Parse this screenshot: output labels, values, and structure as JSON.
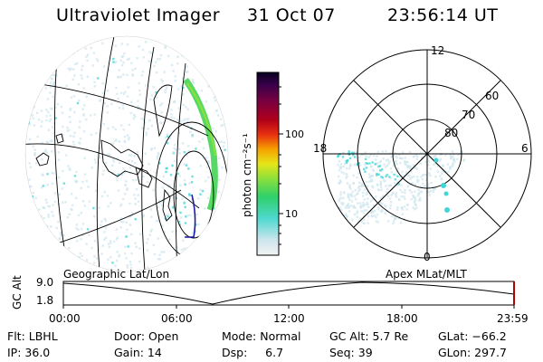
{
  "header": {
    "instrument": "Ultraviolet Imager",
    "date": "31 Oct 07",
    "time": "23:56:14 UT"
  },
  "colorbar": {
    "unit_label": "photon cm⁻²s⁻¹",
    "ticks": [
      {
        "value": 10,
        "label": "10"
      },
      {
        "value": 100,
        "label": "100"
      }
    ],
    "scale": "log"
  },
  "geo_panel": {
    "label": "Geographic Lat/Lon"
  },
  "polar_panel": {
    "label": "Apex  MLat/MLT",
    "mlt_labels": {
      "top": "12",
      "left": "18",
      "right": "6",
      "bottom": "0"
    },
    "lat_labels": [
      "60",
      "70",
      "80"
    ]
  },
  "altitude_plot": {
    "ylabel": "GC Alt",
    "ymax": "9.0",
    "ymin": "1.8",
    "x_ticks": [
      "00:00",
      "06:00",
      "12:00",
      "18:00",
      "23:59"
    ]
  },
  "status": {
    "flt": "Flt: LBHL",
    "ip": "IP: 36.0",
    "door": "Door: Open",
    "gain": "Gain: 14",
    "mode": "Mode: Normal",
    "dsp": "Dsp:     6.7",
    "gc_alt": "GC Alt: 5.7 Re",
    "seq": "Seq: 39",
    "glat": "GLat: −66.2",
    "glon": "GLon: 297.7"
  },
  "colors": {
    "ink": "#000000",
    "haze": "#cfe6ee",
    "cyan": "#3fd6d6",
    "green": "#39d24a",
    "coast_blue": "#1a1aa0",
    "marker_red": "#b00000"
  }
}
